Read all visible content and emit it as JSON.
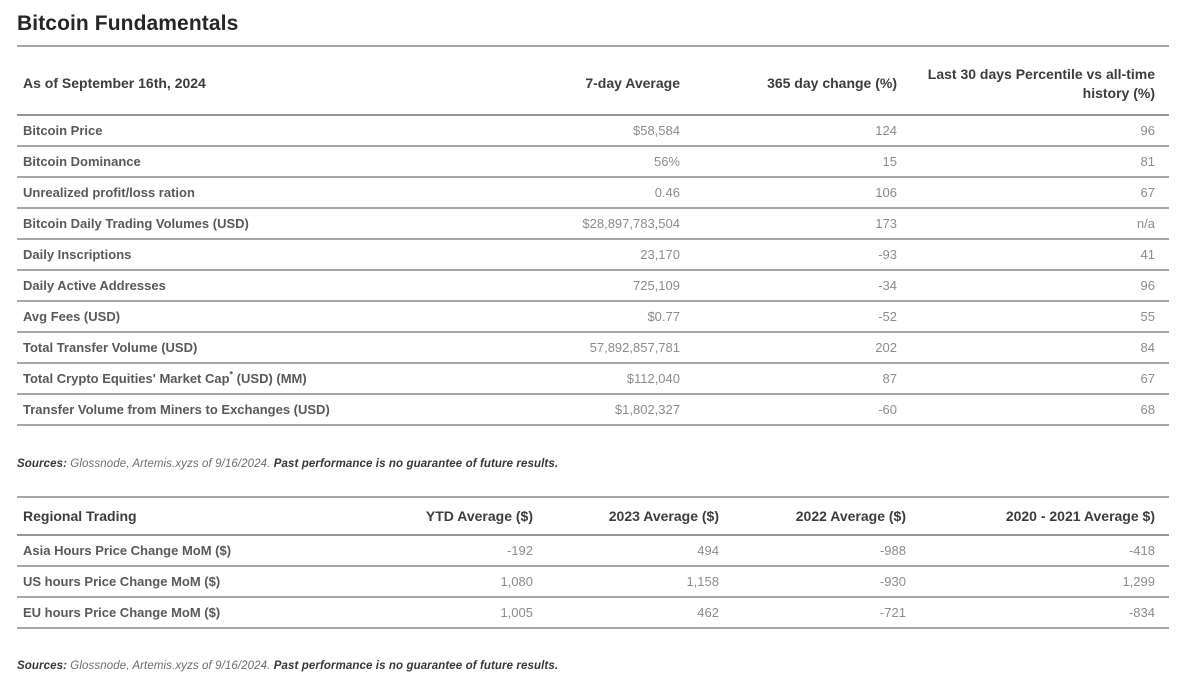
{
  "title": "Bitcoin Fundamentals",
  "fundamentals_table": {
    "columns": [
      "As of September 16th, 2024",
      "7-day Average",
      "365 day change (%)",
      "Last 30 days Percentile vs all-time history (%)"
    ],
    "rows": [
      {
        "label": "Bitcoin Price",
        "avg": "$58,584",
        "change": "124",
        "percentile": "96"
      },
      {
        "label": "Bitcoin Dominance",
        "avg": "56%",
        "change": "15",
        "percentile": "81"
      },
      {
        "label": "Unrealized profit/loss ration",
        "avg": "0.46",
        "change": "106",
        "percentile": "67"
      },
      {
        "label": "Bitcoin Daily Trading Volumes (USD)",
        "avg": "$28,897,783,504",
        "change": "173",
        "percentile": "n/a"
      },
      {
        "label": "Daily Inscriptions",
        "avg": "23,170",
        "change": "-93",
        "percentile": "41"
      },
      {
        "label": "Daily Active Addresses",
        "avg": "725,109",
        "change": "-34",
        "percentile": "96"
      },
      {
        "label": "Avg Fees (USD)",
        "avg": "$0.77",
        "change": "-52",
        "percentile": "55"
      },
      {
        "label": "Total Transfer Volume (USD)",
        "avg": "57,892,857,781",
        "change": "202",
        "percentile": "84"
      },
      {
        "label": "Total Crypto Equities' Market Cap* (USD) (MM)",
        "avg": "$112,040",
        "change": "87",
        "percentile": "67"
      },
      {
        "label": "Transfer Volume from Miners to Exchanges (USD)",
        "avg": "$1,802,327",
        "change": "-60",
        "percentile": "68"
      }
    ]
  },
  "fundamentals_source": {
    "prefix": "Sources:",
    "body": " Glossnode, Artemis.xyzs of 9/16/2024. ",
    "emphasis": "Past performance is no guarantee of future results."
  },
  "regional_table": {
    "columns": [
      "Regional Trading",
      "YTD Average ($)",
      "2023 Average ($)",
      "2022 Average ($)",
      "2020 - 2021 Average $)"
    ],
    "rows": [
      {
        "label": "Asia Hours Price Change MoM ($)",
        "ytd": "-192",
        "y2023": "494",
        "y2022": "-988",
        "y2020_2021": "-418"
      },
      {
        "label": "US hours Price Change MoM ($)",
        "ytd": "1,080",
        "y2023": "1,158",
        "y2022": "-930",
        "y2020_2021": "1,299"
      },
      {
        "label": "EU hours Price Change MoM ($)",
        "ytd": "1,005",
        "y2023": "462",
        "y2022": "-721",
        "y2020_2021": "-834"
      }
    ]
  },
  "regional_source": {
    "prefix": "Sources:",
    "body": " Glossnode, Artemis.xyzs of 9/16/2024. ",
    "emphasis": "Past performance is no guarantee of future results."
  }
}
